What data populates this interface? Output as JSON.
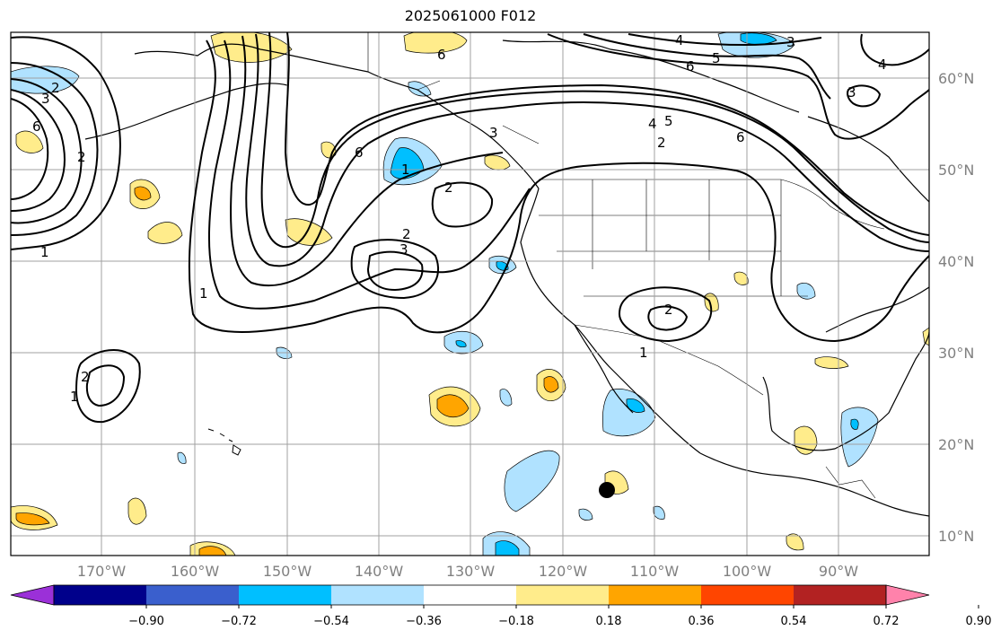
{
  "title": "2025061000 F012",
  "map": {
    "lat_labels": [
      "60°N",
      "50°N",
      "40°N",
      "30°N",
      "20°N",
      "10°N"
    ],
    "lon_labels": [
      "170°W",
      "160°W",
      "150°W",
      "140°W",
      "130°W",
      "120°W",
      "110°W",
      "100°W",
      "90°W"
    ],
    "contour_labels": [
      "6",
      "2",
      "3",
      "6",
      "4",
      "5",
      "6",
      "3",
      "4",
      "3",
      "4",
      "5",
      "2",
      "1",
      "2",
      "6",
      "2",
      "3",
      "2",
      "1",
      "3",
      "6",
      "1",
      "2",
      "1",
      "2",
      "1"
    ],
    "colors": {
      "land_line": "#000000",
      "grid": "#a0a0a0",
      "marker": "#000000"
    }
  },
  "colorbar": {
    "tick_labels": [
      "−0.90",
      "−0.72",
      "−0.54",
      "−0.36",
      "−0.18",
      "0.18",
      "0.36",
      "0.54",
      "0.72",
      "0.90"
    ],
    "colors": [
      "#9b30d8",
      "#00008b",
      "#3a5fcd",
      "#00bfff",
      "#b0e2ff",
      "#ffffff",
      "#ffec8b",
      "#ffa500",
      "#ff4500",
      "#b22222",
      "#ff82ab"
    ]
  }
}
